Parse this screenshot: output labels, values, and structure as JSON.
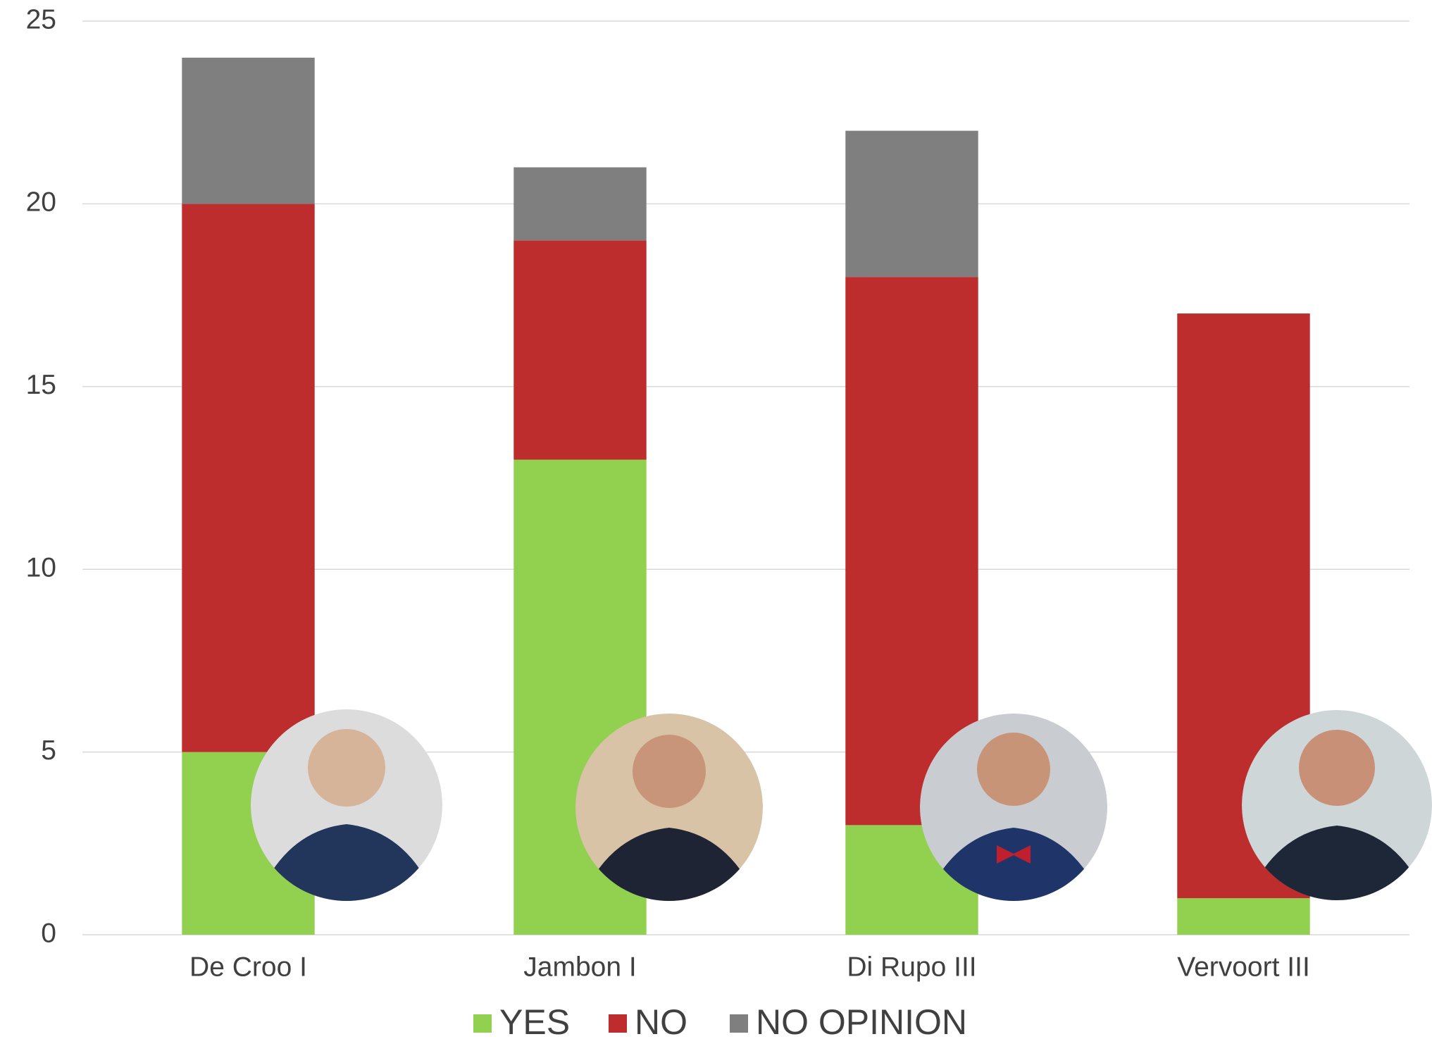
{
  "chart_data": {
    "type": "stacked_bar",
    "categories": [
      "De Croo I",
      "Jambon I",
      "Di Rupo III",
      "Vervoort III"
    ],
    "series": [
      {
        "name": "YES",
        "color": "#92d050",
        "values": [
          5,
          13,
          3,
          1
        ]
      },
      {
        "name": "NO",
        "color": "#be2d2d",
        "values": [
          15,
          6,
          15,
          16
        ]
      },
      {
        "name": "NO OPINION",
        "color": "#7f7f7f",
        "values": [
          4,
          2,
          4,
          0
        ]
      }
    ],
    "ylim": [
      0,
      25
    ],
    "yticks": [
      0,
      5,
      10,
      15,
      20,
      25
    ],
    "grid": true,
    "legend": "bottom"
  }
}
